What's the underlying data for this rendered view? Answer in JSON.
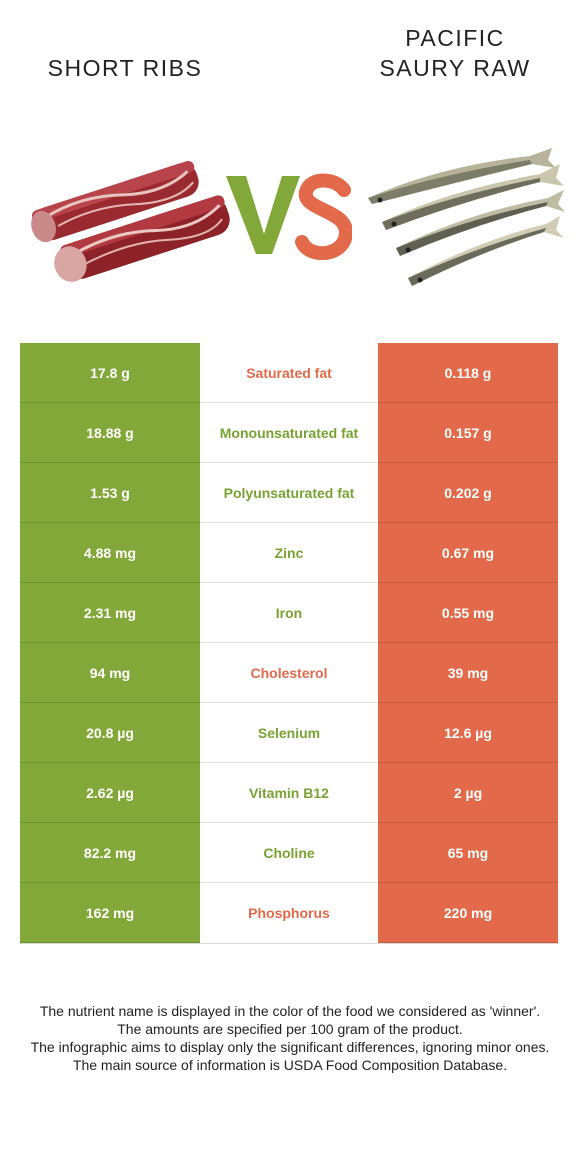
{
  "header": {
    "left_title": "SHORT RIBS",
    "right_title_line1": "PACIFIC",
    "right_title_line2": "SAURY RAW",
    "vs_text": "VS"
  },
  "colors": {
    "left_food": "#83a83a",
    "right_food": "#e26a4a"
  },
  "images": {
    "left_icon": "raw-short-ribs-meat",
    "right_icon": "pacific-saury-fish"
  },
  "rows": [
    {
      "left": "17.8 g",
      "nutrient": "Saturated fat",
      "right": "0.118 g",
      "winner": "right"
    },
    {
      "left": "18.88 g",
      "nutrient": "Monounsaturated fat",
      "right": "0.157 g",
      "winner": "left"
    },
    {
      "left": "1.53 g",
      "nutrient": "Polyunsaturated fat",
      "right": "0.202 g",
      "winner": "left"
    },
    {
      "left": "4.88 mg",
      "nutrient": "Zinc",
      "right": "0.67 mg",
      "winner": "left"
    },
    {
      "left": "2.31 mg",
      "nutrient": "Iron",
      "right": "0.55 mg",
      "winner": "left"
    },
    {
      "left": "94 mg",
      "nutrient": "Cholesterol",
      "right": "39 mg",
      "winner": "right"
    },
    {
      "left": "20.8 µg",
      "nutrient": "Selenium",
      "right": "12.6 µg",
      "winner": "left"
    },
    {
      "left": "2.62 µg",
      "nutrient": "Vitamin B12",
      "right": "2 µg",
      "winner": "left"
    },
    {
      "left": "82.2 mg",
      "nutrient": "Choline",
      "right": "65 mg",
      "winner": "left"
    },
    {
      "left": "162 mg",
      "nutrient": "Phosphorus",
      "right": "220 mg",
      "winner": "right"
    }
  ],
  "footer": {
    "line1": "The nutrient name is displayed in the color of the food we considered as 'winner'.",
    "line2": "The amounts are specified per 100 gram of the product.",
    "line3": "The infographic aims to display only the significant differences, ignoring minor ones.",
    "line4": "The main source of information is USDA Food Composition Database."
  }
}
